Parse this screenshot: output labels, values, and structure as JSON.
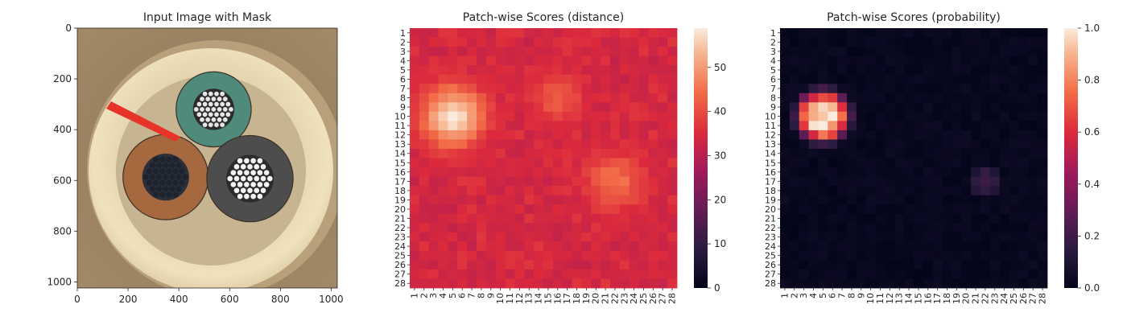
{
  "chart_data": [
    {
      "type": "image",
      "title": "Input Image with Mask",
      "x_ticks": [
        0,
        200,
        400,
        600,
        800,
        1000
      ],
      "y_ticks": [
        0,
        200,
        400,
        600,
        800,
        1000
      ],
      "xlim": [
        0,
        1024
      ],
      "ylim": [
        1024,
        0
      ],
      "mask_color": "#e8332b",
      "cables": [
        {
          "name": "teal-cable",
          "color": "#4f8a7a",
          "center": [
            537,
            320
          ],
          "radius": 148
        },
        {
          "name": "copper-cable",
          "color": "#a6683f",
          "center": [
            348,
            587
          ],
          "radius": 168
        },
        {
          "name": "gray-cable",
          "color": "#4d4d4d",
          "center": [
            680,
            593
          ],
          "radius": 170
        }
      ],
      "colors": {
        "background": "#9a7f60",
        "ring": "#f1e4be",
        "insulation": "#c9b793"
      }
    },
    {
      "type": "heatmap",
      "title": "Patch-wise Scores (distance)",
      "x_labels": [
        "1",
        "2",
        "3",
        "4",
        "5",
        "6",
        "7",
        "8",
        "9",
        "10",
        "11",
        "12",
        "13",
        "14",
        "15",
        "16",
        "17",
        "18",
        "19",
        "20",
        "21",
        "22",
        "23",
        "24",
        "25",
        "26",
        "27",
        "28"
      ],
      "y_labels": [
        "1",
        "2",
        "3",
        "4",
        "5",
        "6",
        "7",
        "8",
        "9",
        "10",
        "11",
        "12",
        "13",
        "14",
        "15",
        "16",
        "17",
        "18",
        "19",
        "20",
        "21",
        "22",
        "23",
        "24",
        "25",
        "26",
        "27",
        "28"
      ],
      "colorbar": {
        "min": 0,
        "max": 58.9,
        "ticks": [
          0,
          10,
          20,
          30,
          40,
          50
        ]
      },
      "base_value": 33,
      "hotspots": [
        {
          "row": 10,
          "col": 5,
          "peak": 58,
          "spread": 2.3
        },
        {
          "row": 8,
          "col": 16,
          "peak": 42,
          "spread": 2.0
        },
        {
          "row": 17,
          "col": 22,
          "peak": 45,
          "spread": 2.2
        }
      ],
      "colormap": "rocket"
    },
    {
      "type": "heatmap",
      "title": "Patch-wise Scores (probability)",
      "x_labels": [
        "1",
        "2",
        "3",
        "4",
        "5",
        "6",
        "7",
        "8",
        "9",
        "10",
        "11",
        "12",
        "13",
        "14",
        "15",
        "16",
        "17",
        "18",
        "19",
        "20",
        "21",
        "22",
        "23",
        "24",
        "25",
        "26",
        "27",
        "28"
      ],
      "y_labels": [
        "1",
        "2",
        "3",
        "4",
        "5",
        "6",
        "7",
        "8",
        "9",
        "10",
        "11",
        "12",
        "13",
        "14",
        "15",
        "16",
        "17",
        "18",
        "19",
        "20",
        "21",
        "22",
        "23",
        "24",
        "25",
        "26",
        "27",
        "28"
      ],
      "colorbar": {
        "min": 0.0,
        "max": 1.0,
        "ticks": [
          "0.0",
          "0.2",
          "0.4",
          "0.6",
          "0.8",
          "1.0"
        ]
      },
      "hotspots": [
        {
          "row": 10,
          "col": 5,
          "peak": 1.0,
          "spread": 1.9
        },
        {
          "row": 17,
          "col": 22,
          "peak": 0.18,
          "spread": 1.2
        }
      ],
      "colormap": "rocket"
    }
  ]
}
